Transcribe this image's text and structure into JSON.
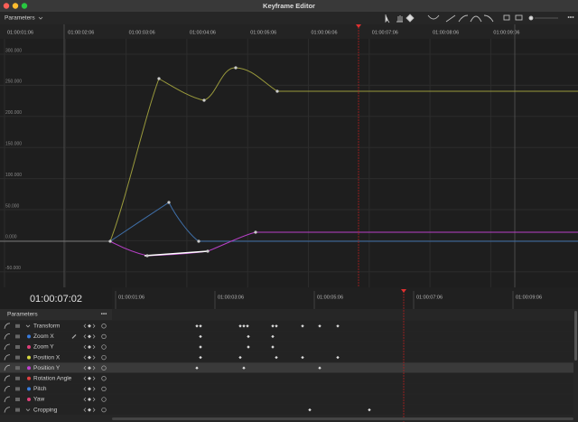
{
  "window": {
    "title": "Keyframe Editor"
  },
  "toolbar": {
    "label": "Parameters",
    "more": "•••"
  },
  "graph": {
    "ruler": [
      "01:00:01:06",
      "01:00:02:06",
      "01:00:03:06",
      "01:00:04:06",
      "01:00:05:06",
      "01:00:06:06",
      "01:00:07:06",
      "01:00:08:06",
      "01:00:09:06"
    ],
    "y_labels": [
      "300.000",
      "250.000",
      "200.000",
      "150.000",
      "100.000",
      "50.000",
      "0.000",
      "-50.000"
    ]
  },
  "timeline": {
    "timecode": "01:00:07:02",
    "ruler": [
      "01:00:01:06",
      "01:00:03:06",
      "01:00:05:06",
      "01:00:07:06",
      "01:00:09:06"
    ],
    "header": "Parameters",
    "header_more": "•••",
    "rows": [
      "Transform",
      "Zoom X",
      "Zoom Y",
      "Position X",
      "Position Y",
      "Rotation Angle",
      "Pitch",
      "Yaw",
      "Cropping"
    ]
  }
}
